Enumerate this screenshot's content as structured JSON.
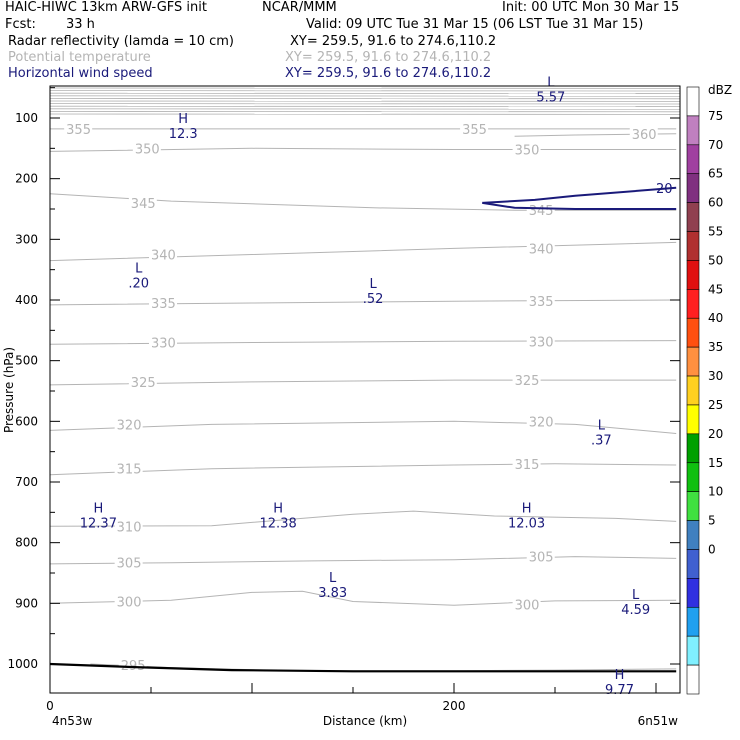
{
  "header": {
    "model": "HAIC-HIWC 13km ARW-GFS init",
    "org": "NCAR/MMM",
    "init": "Init: 00 UTC Mon 30 Mar 15",
    "fcst_label": "Fcst:",
    "fcst_value": "33 h",
    "valid": "Valid: 09 UTC Tue 31 Mar 15 (06 LST Tue 31 Mar 15)",
    "fields": [
      {
        "name": "Radar reflectivity (lamda = 10 cm)",
        "coords": "XY= 259.5, 91.6 to 274.6,110.2",
        "color": "#000000"
      },
      {
        "name": "Potential temperature",
        "coords": "XY= 259.5, 91.6 to 274.6,110.2",
        "color": "#b4b4b4"
      },
      {
        "name": "Horizontal wind speed",
        "coords": "XY= 259.5, 91.6 to 274.6,110.2",
        "color": "#1a1a7a"
      }
    ]
  },
  "chart_data": {
    "type": "cross-section",
    "ylabel": "Pressure (hPa)",
    "xlabel": "Distance (km)",
    "y_ticks": [
      100,
      200,
      300,
      400,
      500,
      600,
      700,
      800,
      900,
      1000
    ],
    "x_ticks": [
      0,
      200
    ],
    "x_end_labels": [
      "4n53w",
      "6n51w"
    ],
    "xlim": [
      0,
      310
    ],
    "ylim": [
      50,
      1050
    ],
    "theta_contours": [
      {
        "value": 295,
        "points": [
          [
            20,
            1000
          ],
          [
            60,
            1006
          ],
          [
            120,
            1011
          ],
          [
            200,
            1011
          ],
          [
            250,
            1010
          ],
          [
            310,
            1008
          ]
        ],
        "labels": [
          [
            35,
            1002
          ]
        ]
      },
      {
        "value": 300,
        "points": [
          [
            0,
            900
          ],
          [
            60,
            895
          ],
          [
            100,
            882
          ],
          [
            125,
            880
          ],
          [
            150,
            897
          ],
          [
            200,
            903
          ],
          [
            250,
            896
          ],
          [
            310,
            895
          ]
        ],
        "labels": [
          [
            33,
            897
          ],
          [
            230,
            902
          ]
        ]
      },
      {
        "value": 305,
        "points": [
          [
            0,
            835
          ],
          [
            60,
            833
          ],
          [
            130,
            830
          ],
          [
            200,
            828
          ],
          [
            260,
            823
          ],
          [
            310,
            826
          ]
        ],
        "labels": [
          [
            33,
            833
          ],
          [
            237,
            823
          ]
        ]
      },
      {
        "value": 310,
        "points": [
          [
            0,
            773
          ],
          [
            80,
            772
          ],
          [
            150,
            753
          ],
          [
            180,
            748
          ],
          [
            220,
            756
          ],
          [
            280,
            760
          ],
          [
            310,
            765
          ]
        ],
        "labels": [
          [
            33,
            773
          ]
        ]
      },
      {
        "value": 315,
        "points": [
          [
            0,
            688
          ],
          [
            80,
            678
          ],
          [
            200,
            672
          ],
          [
            250,
            670
          ],
          [
            310,
            672
          ]
        ],
        "labels": [
          [
            33,
            678
          ],
          [
            230,
            670
          ]
        ]
      },
      {
        "value": 320,
        "points": [
          [
            0,
            615
          ],
          [
            80,
            605
          ],
          [
            200,
            600
          ],
          [
            260,
            605
          ],
          [
            310,
            620
          ]
        ],
        "labels": [
          [
            33,
            605
          ],
          [
            237,
            600
          ]
        ]
      },
      {
        "value": 325,
        "points": [
          [
            0,
            540
          ],
          [
            100,
            535
          ],
          [
            200,
            532
          ],
          [
            310,
            532
          ]
        ],
        "labels": [
          [
            40,
            535
          ],
          [
            230,
            532
          ]
        ]
      },
      {
        "value": 330,
        "points": [
          [
            0,
            473
          ],
          [
            100,
            470
          ],
          [
            200,
            468
          ],
          [
            310,
            467
          ]
        ],
        "labels": [
          [
            50,
            470
          ],
          [
            237,
            468
          ]
        ]
      },
      {
        "value": 335,
        "points": [
          [
            0,
            408
          ],
          [
            100,
            405
          ],
          [
            200,
            402
          ],
          [
            310,
            400
          ]
        ],
        "labels": [
          [
            50,
            405
          ],
          [
            237,
            402
          ]
        ]
      },
      {
        "value": 340,
        "points": [
          [
            0,
            335
          ],
          [
            100,
            325
          ],
          [
            200,
            315
          ],
          [
            310,
            305
          ]
        ],
        "labels": [
          [
            50,
            325
          ],
          [
            237,
            315
          ]
        ]
      },
      {
        "value": 345,
        "points": [
          [
            0,
            225
          ],
          [
            60,
            237
          ],
          [
            160,
            248
          ],
          [
            230,
            252
          ],
          [
            310,
            252
          ]
        ],
        "labels": [
          [
            40,
            240
          ],
          [
            237,
            252
          ]
        ]
      },
      {
        "value": 350,
        "points": [
          [
            0,
            155
          ],
          [
            100,
            150
          ],
          [
            200,
            152
          ],
          [
            310,
            152
          ]
        ],
        "labels": [
          [
            42,
            150
          ],
          [
            230,
            152
          ]
        ]
      },
      {
        "value": 355,
        "points": [
          [
            0,
            118
          ],
          [
            100,
            118
          ],
          [
            200,
            118
          ],
          [
            310,
            118
          ]
        ],
        "labels": [
          [
            8,
            118
          ],
          [
            204,
            118
          ]
        ]
      },
      {
        "value": 360,
        "points": [
          [
            230,
            130
          ],
          [
            260,
            128
          ],
          [
            310,
            126
          ]
        ],
        "labels": [
          [
            288,
            126
          ]
        ]
      }
    ],
    "wind_contours": [
      {
        "value": 20,
        "points": [
          [
            214,
            240
          ],
          [
            240,
            235
          ],
          [
            260,
            228
          ],
          [
            310,
            215
          ]
        ],
        "close": [
          [
            310,
            250
          ],
          [
            260,
            250
          ],
          [
            230,
            248
          ],
          [
            214,
            240
          ]
        ],
        "labels": [
          [
            300,
            215
          ]
        ]
      }
    ],
    "terrain": [
      [
        0,
        1000
      ],
      [
        40,
        1005
      ],
      [
        90,
        1010
      ],
      [
        150,
        1012
      ],
      [
        250,
        1012
      ],
      [
        310,
        1012
      ]
    ],
    "extrema": [
      {
        "type": "H",
        "value": "12.3",
        "x": 60,
        "y": 113
      },
      {
        "type": "L",
        "value": "5.57",
        "x": 242,
        "y": 53
      },
      {
        "type": "L",
        "value": ".20",
        "x": 38,
        "y": 360
      },
      {
        "type": "L",
        "value": ".52",
        "x": 154,
        "y": 385
      },
      {
        "type": "L",
        "value": ".37",
        "x": 267,
        "y": 618
      },
      {
        "type": "H",
        "value": "12.37",
        "x": 18,
        "y": 755
      },
      {
        "type": "H",
        "value": "12.38",
        "x": 107,
        "y": 755
      },
      {
        "type": "H",
        "value": "12.03",
        "x": 230,
        "y": 755
      },
      {
        "type": "L",
        "value": "3.83",
        "x": 134,
        "y": 870
      },
      {
        "type": "L",
        "value": "4.59",
        "x": 284,
        "y": 898
      },
      {
        "type": "H",
        "value": "9.77",
        "x": 276,
        "y": 1030
      }
    ],
    "colorbar": {
      "units": "dBZ",
      "labels": [
        75,
        70,
        65,
        60,
        55,
        50,
        45,
        40,
        35,
        30,
        25,
        20,
        15,
        10,
        5,
        0
      ],
      "colors": [
        "#ffffff",
        "#c080c0",
        "#a040a0",
        "#803080",
        "#904050",
        "#b03030",
        "#e01010",
        "#ff2020",
        "#ff5010",
        "#ff9040",
        "#ffd020",
        "#ffff00",
        "#00a000",
        "#10c010",
        "#40e040",
        "#4080c0",
        "#4060d0",
        "#3030e0",
        "#20a0f0",
        "#80f0ff",
        "#ffffff"
      ]
    }
  }
}
